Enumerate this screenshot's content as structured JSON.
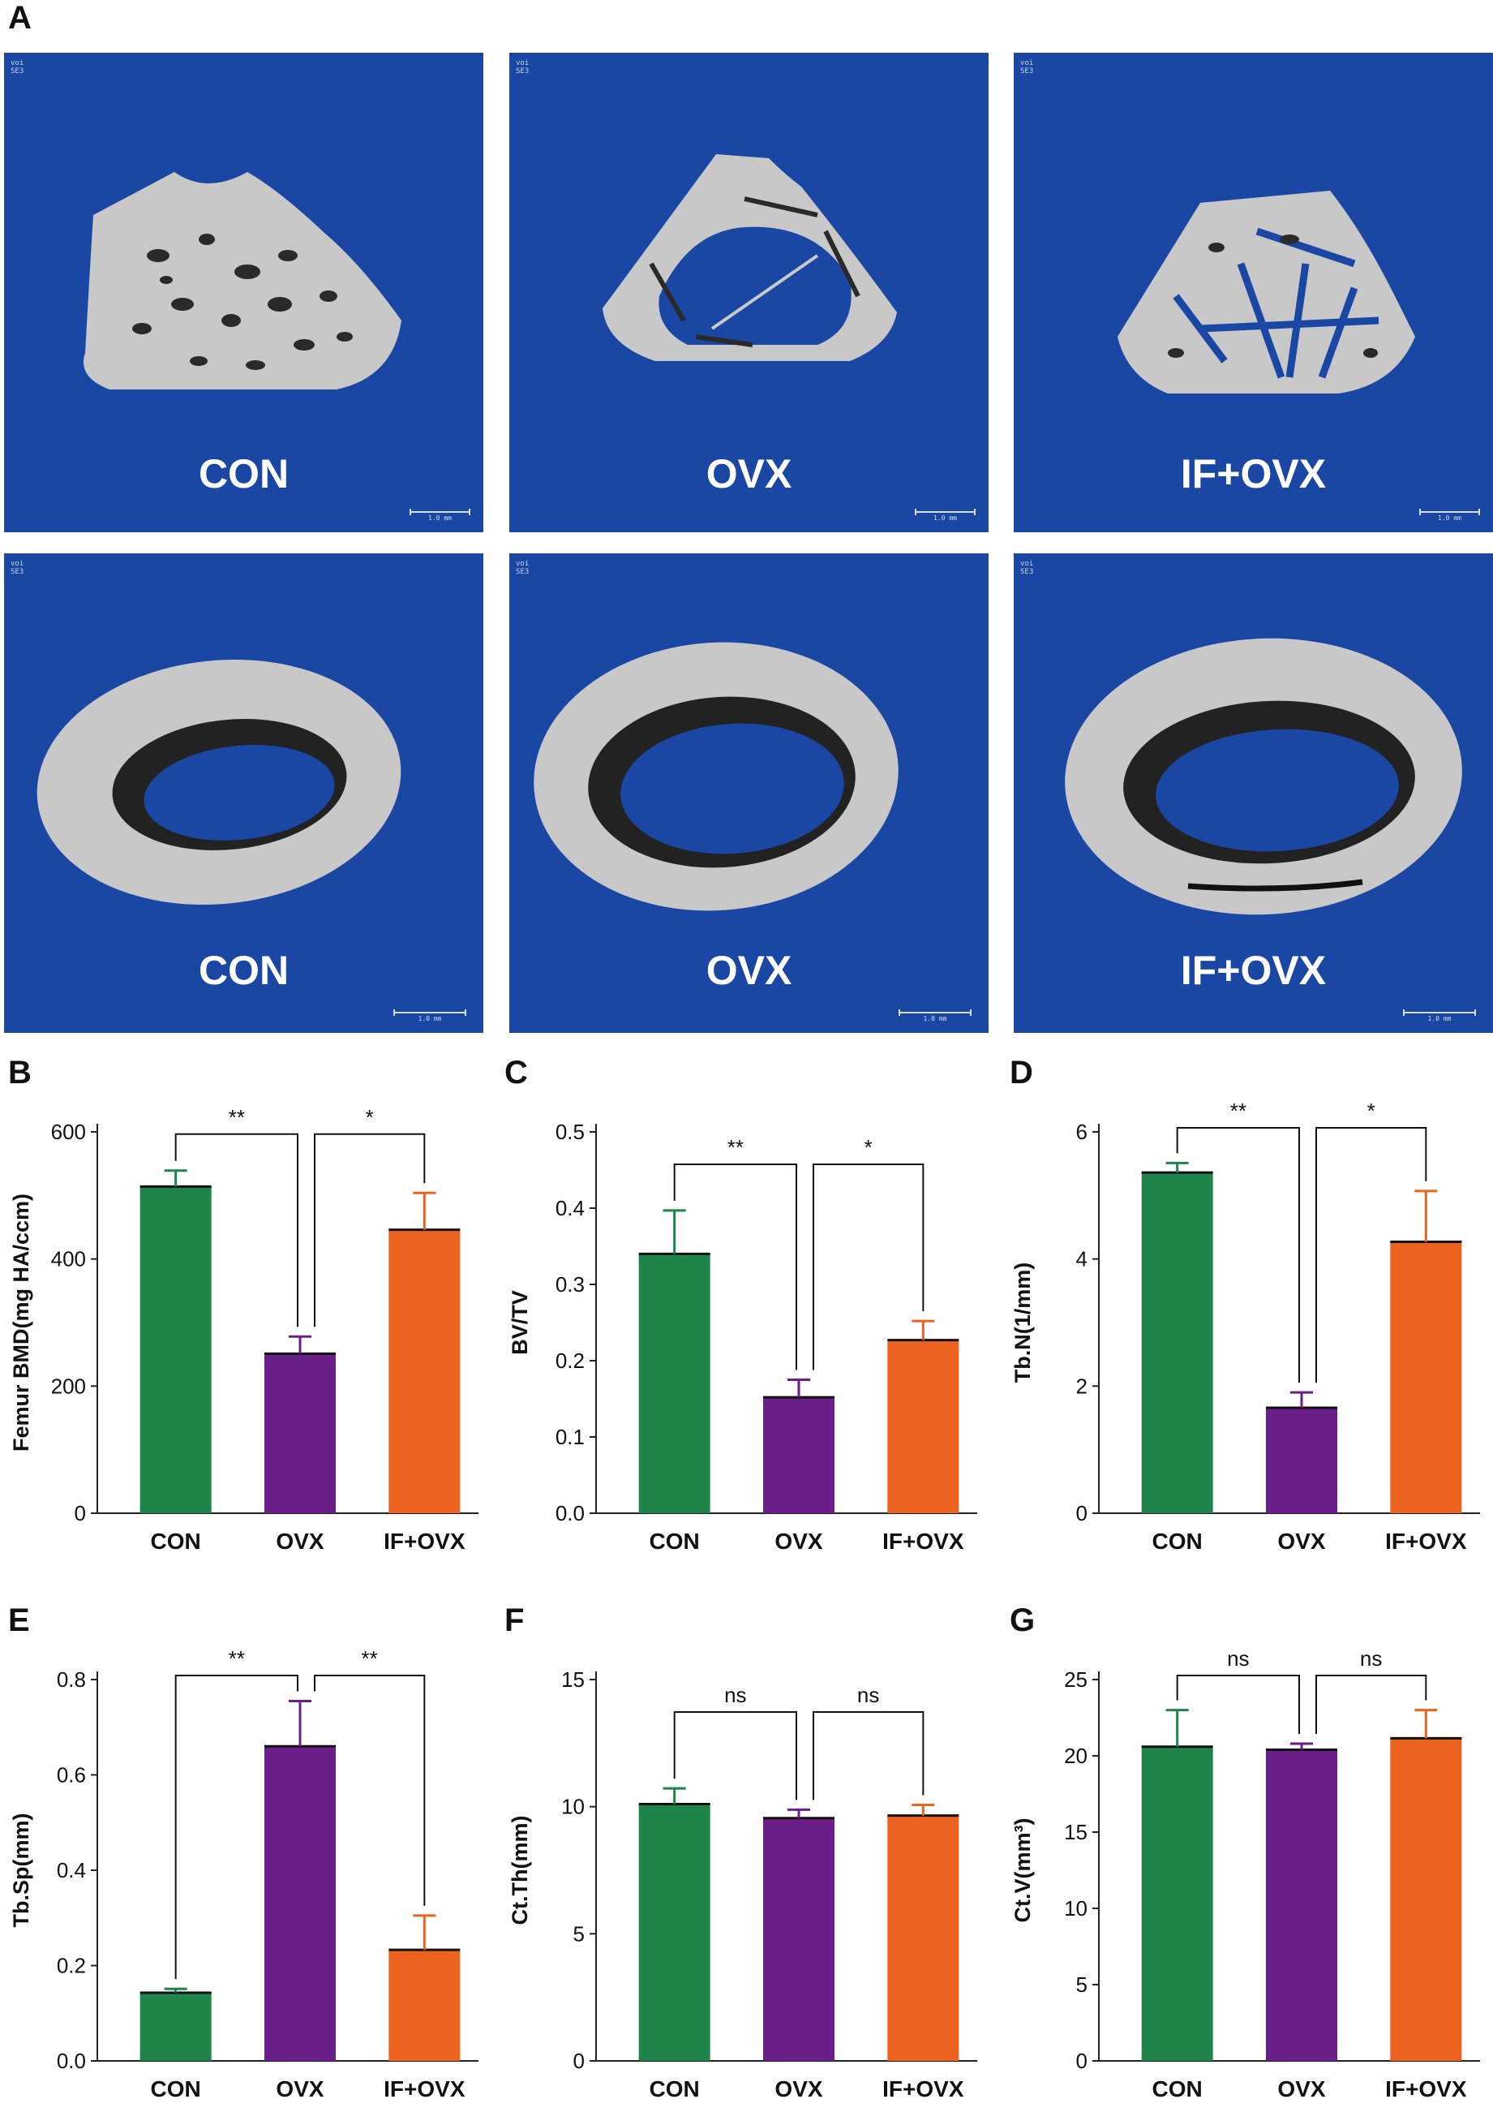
{
  "panel_labels": {
    "A": "A",
    "B": "B",
    "C": "C",
    "D": "D",
    "E": "E",
    "F": "F",
    "G": "G"
  },
  "tile_header": {
    "line1": "voi",
    "line2": "SE3"
  },
  "scale_bar_label": "1.0 mm",
  "microct_tiles": [
    {
      "label": "CON",
      "view": "trabecular"
    },
    {
      "label": "OVX",
      "view": "trabecular"
    },
    {
      "label": "IF+OVX",
      "view": "trabecular"
    },
    {
      "label": "CON",
      "view": "cortical"
    },
    {
      "label": "OVX",
      "view": "cortical"
    },
    {
      "label": "IF+OVX",
      "view": "cortical"
    }
  ],
  "colors": {
    "CON": "#1e8449",
    "OVX": "#6a1e8a",
    "IF+OVX": "#ec6320",
    "tile_bg": "#1a47a3",
    "bone": "#c8c8c8"
  },
  "chart_data": [
    {
      "panel": "B",
      "type": "bar",
      "categories": [
        "CON",
        "OVX",
        "IF+OVX"
      ],
      "values": [
        514,
        251,
        446
      ],
      "errors": [
        25,
        27,
        58
      ],
      "ylabel": "Femur BMD(mg HA/ccm)",
      "ylim": [
        0,
        600
      ],
      "yticks": [
        0,
        200,
        400,
        600
      ],
      "comparisons": [
        {
          "from": 0,
          "to": 1,
          "label": "**"
        },
        {
          "from": 1,
          "to": 2,
          "label": "*"
        }
      ]
    },
    {
      "panel": "C",
      "type": "bar",
      "categories": [
        "CON",
        "OVX",
        "IF+OVX"
      ],
      "values": [
        0.34,
        0.152,
        0.227
      ],
      "errors": [
        0.057,
        0.023,
        0.025
      ],
      "ylabel": "BV/TV",
      "ylim": [
        0,
        0.5
      ],
      "yticks": [
        0.0,
        0.1,
        0.2,
        0.3,
        0.4,
        0.5
      ],
      "comparisons": [
        {
          "from": 0,
          "to": 1,
          "label": "**"
        },
        {
          "from": 1,
          "to": 2,
          "label": "*"
        }
      ]
    },
    {
      "panel": "D",
      "type": "bar",
      "categories": [
        "CON",
        "OVX",
        "IF+OVX"
      ],
      "values": [
        5.36,
        1.66,
        4.27
      ],
      "errors": [
        0.15,
        0.24,
        0.8
      ],
      "ylabel": "Tb.N(1/mm)",
      "ylim": [
        0,
        6
      ],
      "yticks": [
        0,
        2,
        4,
        6
      ],
      "comparisons": [
        {
          "from": 0,
          "to": 1,
          "label": "**"
        },
        {
          "from": 1,
          "to": 2,
          "label": "*"
        }
      ]
    },
    {
      "panel": "E",
      "type": "bar",
      "categories": [
        "CON",
        "OVX",
        "IF+OVX"
      ],
      "values": [
        0.143,
        0.66,
        0.233
      ],
      "errors": [
        0.008,
        0.095,
        0.072
      ],
      "ylabel": "Tb.Sp(mm)",
      "ylim": [
        0,
        0.8
      ],
      "yticks": [
        0.0,
        0.2,
        0.4,
        0.6,
        0.8
      ],
      "comparisons": [
        {
          "from": 0,
          "to": 1,
          "label": "**"
        },
        {
          "from": 1,
          "to": 2,
          "label": "**"
        }
      ]
    },
    {
      "panel": "F",
      "type": "bar",
      "categories": [
        "CON",
        "OVX",
        "IF+OVX"
      ],
      "values": [
        10.1,
        9.55,
        9.65
      ],
      "errors": [
        0.62,
        0.33,
        0.42
      ],
      "ylabel": "Ct.Th(mm)",
      "ylim": [
        0,
        15
      ],
      "yticks": [
        0,
        5,
        10,
        15
      ],
      "comparisons": [
        {
          "from": 0,
          "to": 1,
          "label": "ns"
        },
        {
          "from": 1,
          "to": 2,
          "label": "ns"
        }
      ]
    },
    {
      "panel": "G",
      "type": "bar",
      "categories": [
        "CON",
        "OVX",
        "IF+OVX"
      ],
      "values": [
        20.6,
        20.4,
        21.15
      ],
      "errors": [
        2.4,
        0.4,
        1.85
      ],
      "ylabel": "Ct.V(mm³)",
      "ylim": [
        0,
        25
      ],
      "yticks": [
        0,
        5,
        10,
        15,
        20,
        25
      ],
      "comparisons": [
        {
          "from": 0,
          "to": 1,
          "label": "ns"
        },
        {
          "from": 1,
          "to": 2,
          "label": "ns"
        }
      ]
    }
  ]
}
